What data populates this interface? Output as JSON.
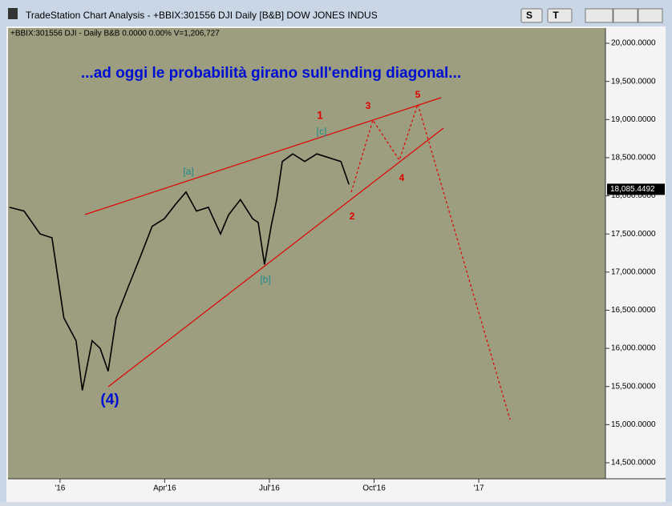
{
  "window_title": "TradeStation Chart Analysis - +BBIX:301556 DJI Daily [B&B] DOW JONES INDUS",
  "buttons": [
    "S",
    "T"
  ],
  "chart_data": {
    "type": "line",
    "header": "+BBIX:301556 DJI - Daily  B&B  0.0000  0.00%  V=1,206,727",
    "title": "...ad oggi le probabilità girano sull'ending diagonal...",
    "x": [
      -0.45,
      -0.03,
      0.43,
      0.77,
      1.11,
      1.46,
      1.64,
      1.92,
      2.15,
      2.38,
      2.61,
      2.95,
      3.3,
      3.64,
      3.99,
      4.33,
      4.61,
      4.91,
      5.25,
      5.6,
      5.83,
      6.17,
      6.52,
      6.68,
      6.86,
      7.05,
      7.21,
      7.37,
      7.67,
      8.01,
      8.36,
      8.7,
      9.05,
      9.28
    ],
    "series": [
      {
        "name": "DJI",
        "color": "#000000",
        "values": [
          17850,
          17800,
          17500,
          17450,
          16400,
          16100,
          15450,
          16100,
          16000,
          15700,
          16400,
          16800,
          17200,
          17600,
          17700,
          17900,
          18050,
          17800,
          17850,
          17500,
          17750,
          17950,
          17700,
          17650,
          17100,
          17600,
          17950,
          18450,
          18550,
          18450,
          18550,
          18500,
          18450,
          18150
        ]
      }
    ],
    "last_value": 18085.4492,
    "last_value_label": "18,085.4492",
    "xlim": [
      -0.49,
      16.63
    ],
    "xticks": [
      {
        "value": 1,
        "label": "'16"
      },
      {
        "value": 4,
        "label": "Apr'16"
      },
      {
        "value": 7,
        "label": "Jul'16"
      },
      {
        "value": 10,
        "label": "Oct'16"
      },
      {
        "value": 13,
        "label": "'17"
      }
    ],
    "ylim": [
      14290,
      20200
    ],
    "yticks": [
      {
        "value": 14500,
        "label": "14,500.0000"
      },
      {
        "value": 15000,
        "label": "15,000.0000"
      },
      {
        "value": 15500,
        "label": "15,500.0000"
      },
      {
        "value": 16000,
        "label": "16,000.0000"
      },
      {
        "value": 16500,
        "label": "16,500.0000"
      },
      {
        "value": 17000,
        "label": "17,000.0000"
      },
      {
        "value": 17500,
        "label": "17,500.0000"
      },
      {
        "value": 18000,
        "label": "18,000.0000"
      },
      {
        "value": 18500,
        "label": "18,500.0000"
      },
      {
        "value": 19000,
        "label": "19,000.0000"
      },
      {
        "value": 19500,
        "label": "19,500.0000"
      },
      {
        "value": 20000,
        "label": "20,000.0000"
      }
    ],
    "annotations": [
      "1",
      "2",
      "3",
      "4",
      "5",
      "[a]",
      "[b]",
      "[c]",
      "(4)"
    ]
  }
}
